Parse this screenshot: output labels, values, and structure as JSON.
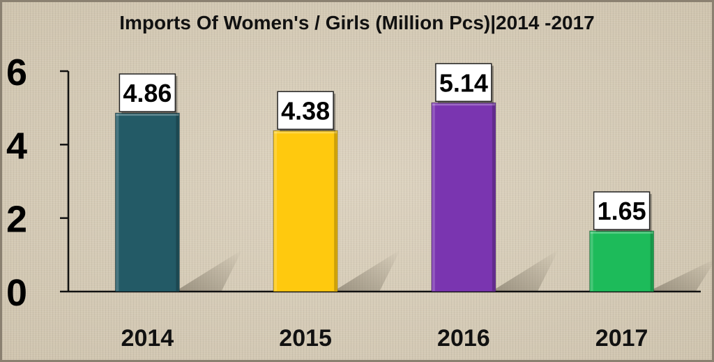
{
  "chart_data": {
    "type": "bar",
    "title": "Imports Of Women's / Girls (Million Pcs)|2014 -2017",
    "categories": [
      "2014",
      "2015",
      "2016",
      "2017"
    ],
    "values": [
      4.86,
      4.38,
      5.14,
      1.65
    ],
    "value_labels": [
      "4.86",
      "4.38",
      "5.14",
      "1.65"
    ],
    "yticks": [
      "0",
      "2",
      "4",
      "6"
    ],
    "ylim": [
      0,
      6
    ],
    "xlabel": "",
    "ylabel": "",
    "grid": false,
    "colors": [
      "#235a66",
      "#ffc90e",
      "#7a35b0",
      "#1dbb5a"
    ]
  }
}
